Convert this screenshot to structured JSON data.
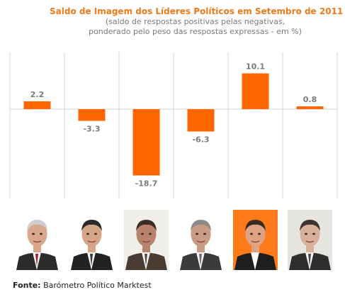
{
  "chart_data": {
    "type": "bar",
    "title": "Saldo de Imagem dos Líderes Políticos em Setembro de 2011",
    "subtitle": [
      "(saldo de respostas positivas pelas negativas,",
      "ponderado pelo peso das respostas expressas - em %)"
    ],
    "categories": [
      "",
      "",
      "",
      "",
      "",
      ""
    ],
    "values": [
      2.2,
      -3.3,
      -18.7,
      -6.3,
      10.1,
      0.8
    ],
    "value_labels": [
      "2.2",
      "-3.3",
      "-18.7",
      "-6.3",
      "10.1",
      "0.8"
    ],
    "ylim": [
      -20,
      13
    ],
    "grid": true,
    "legend": "none"
  },
  "colors": {
    "bar": "#ff6600",
    "grid": "#d6d6d6",
    "title": "#f07a1a",
    "label": "#7b7b7b"
  },
  "portraits": [
    {
      "name": "portrait-leader-1-icon",
      "skin": "#d9a88c",
      "suit": "#2b2b2b",
      "hair": "#cfcfcf",
      "bg": "#ffffff",
      "tie": "#a81d1d"
    },
    {
      "name": "portrait-leader-2-icon",
      "skin": "#d6a486",
      "suit": "#222222",
      "hair": "#2a2a2a",
      "bg": "#ffffff",
      "tie": "#3a3a3a"
    },
    {
      "name": "portrait-leader-3-icon",
      "skin": "#b9826a",
      "suit": "#4a3b33",
      "hair": "#3b2d27",
      "bg": "#f0efe9",
      "tie": "#5a4a3a"
    },
    {
      "name": "portrait-leader-4-icon",
      "skin": "#c99a86",
      "suit": "#3b3b3b",
      "hair": "#8a8a8a",
      "bg": "#ffffff",
      "tie": "#6f6f6f"
    },
    {
      "name": "portrait-leader-5-icon",
      "skin": "#dca384",
      "suit": "#1e1e1e",
      "hair": "#3a2a22",
      "bg": "#ff7a1a",
      "tie": "#ffffff"
    },
    {
      "name": "portrait-leader-6-icon",
      "skin": "#d8b09a",
      "suit": "#2e2e2e",
      "hair": "#3d3330",
      "bg": "#e6e5e0",
      "tie": "#4a4a4a"
    }
  ],
  "source": {
    "label": "Fonte:",
    "text": " Barómetro Político Marktest"
  }
}
